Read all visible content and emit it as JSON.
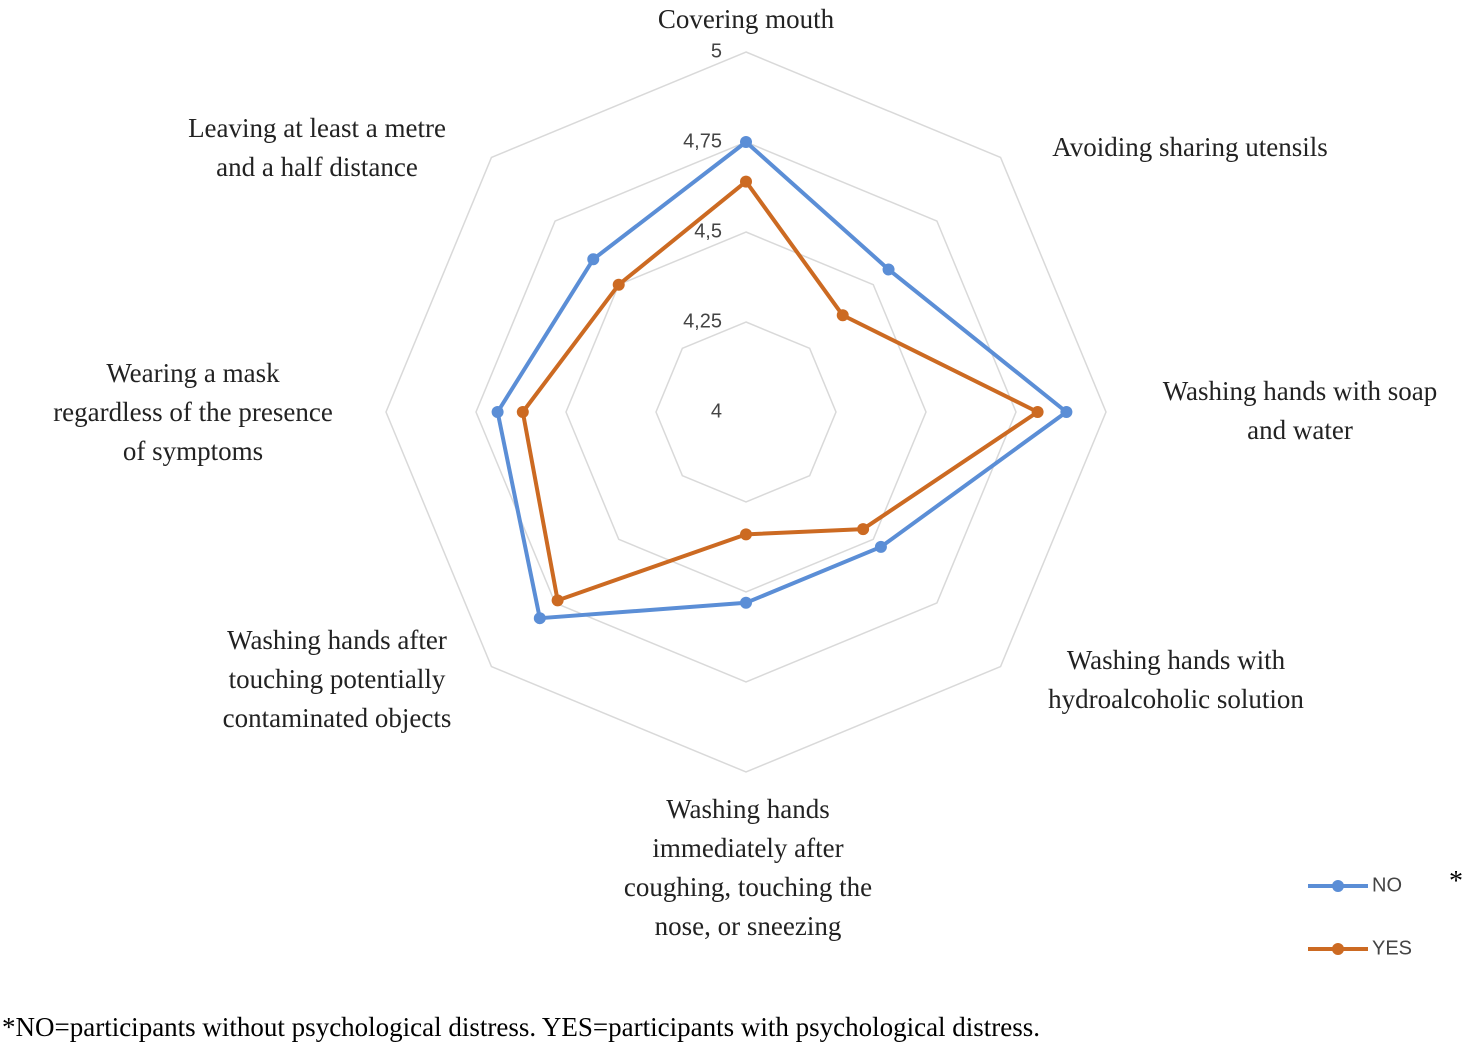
{
  "chart_data": {
    "type": "radar",
    "categories": [
      "Covering mouth",
      "Avoiding sharing utensils",
      "Washing hands with soap\nand water",
      "Washing hands with\nhydroalcoholic solution",
      "Washing hands\nimmediately after\ncoughing, touching the\nnose, or sneezing",
      "Washing hands after\ntouching potentially\ncontaminated objects",
      "Wearing a mask\nregardless of the presence\nof symptoms",
      "Leaving at least a metre\nand a half distance"
    ],
    "series": [
      {
        "name": "NO",
        "color": "#5b8ed6",
        "values": [
          4.75,
          4.56,
          4.89,
          4.53,
          4.53,
          4.81,
          4.69,
          4.6
        ]
      },
      {
        "name": "YES",
        "color": "#cc6a22",
        "values": [
          4.64,
          4.38,
          4.81,
          4.46,
          4.34,
          4.74,
          4.62,
          4.5
        ]
      }
    ],
    "rlim": [
      4,
      5
    ],
    "rticks": [
      4,
      {
        "value": 4.25,
        "label": "4,25"
      },
      {
        "value": 4.5,
        "label": "4,5"
      },
      {
        "value": 4.75,
        "label": "4,75"
      },
      5
    ],
    "legend_note": "*",
    "footnote": "*NO=participants without psychological distress. YES=participants with psychological distress."
  }
}
